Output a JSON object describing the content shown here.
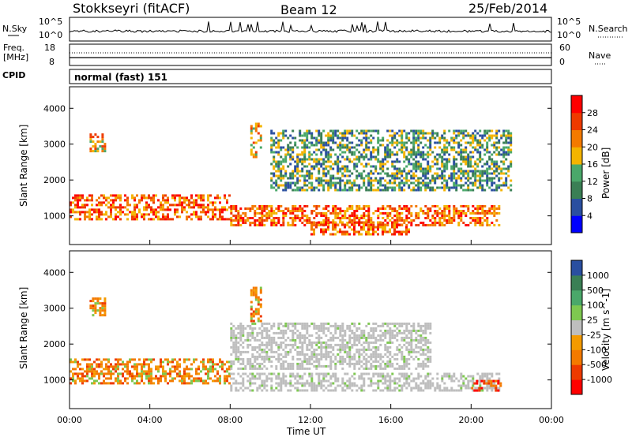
{
  "header": {
    "station": "Stokkseyri (fitACF)",
    "beam": "Beam 12",
    "date": "25/Feb/2014"
  },
  "noise_panel": {
    "left_label": "N.Sky",
    "right_label": "N.Search",
    "ticks_left": [
      "10^5",
      "10^0"
    ],
    "ticks_right": [
      "10^5",
      "10^0"
    ]
  },
  "freq_panel": {
    "left_label_line1": "Freq.",
    "left_label_line2": "[MHz]",
    "right_label": "Nave",
    "ticks_left": [
      "18",
      "8"
    ],
    "ticks_right": [
      "60",
      "0"
    ]
  },
  "cpid": {
    "label": "CPID",
    "value": "normal (fast) 151"
  },
  "chart_data": [
    {
      "type": "heatmap",
      "name": "power",
      "ylabel": "Slant Range [km]",
      "ylim": [
        200,
        4600
      ],
      "yticks": [
        "1000",
        "2000",
        "3000",
        "4000"
      ],
      "colorbar": {
        "label": "Power [dB]",
        "range": [
          0,
          32
        ],
        "ticks": [
          "4",
          "8",
          "12",
          "16",
          "20",
          "24",
          "28"
        ],
        "colors": [
          "#0000ff",
          "#2a4fa0",
          "#3a7f55",
          "#4aa86a",
          "#f4b400",
          "#f47a00",
          "#ee3a00",
          "#ff0000"
        ]
      },
      "regions": [
        {
          "t": [
            0,
            8.0
          ],
          "r": [
            850,
            1600
          ],
          "level": "high"
        },
        {
          "t": [
            8.0,
            21.5
          ],
          "r": [
            700,
            1300
          ],
          "level": "high"
        },
        {
          "t": [
            12.0,
            17.0
          ],
          "r": [
            450,
            850
          ],
          "level": "high"
        },
        {
          "t": [
            1.0,
            1.8
          ],
          "r": [
            2800,
            3300
          ],
          "level": "mid"
        },
        {
          "t": [
            9.0,
            9.6
          ],
          "r": [
            2600,
            3600
          ],
          "level": "mid"
        },
        {
          "t": [
            10.0,
            22.0
          ],
          "r": [
            1700,
            3400
          ],
          "level": "low"
        }
      ]
    },
    {
      "type": "heatmap",
      "name": "velocity",
      "xlabel": "Time UT",
      "ylabel": "Slant Range [km]",
      "ylim": [
        200,
        4600
      ],
      "yticks": [
        "1000",
        "2000",
        "3000",
        "4000"
      ],
      "xticks": [
        "00:00",
        "04:00",
        "08:00",
        "12:00",
        "16:00",
        "20:00",
        "00:00"
      ],
      "colorbar": {
        "label": "Velocity [m s^-1]",
        "ticks": [
          "1000",
          "500",
          "100",
          "25",
          "-25",
          "-100",
          "-500",
          "-1000"
        ],
        "colors": [
          "#2a4fa0",
          "#3a7f55",
          "#4aa86a",
          "#7ec850",
          "#bebebe",
          "#f49a00",
          "#f47a00",
          "#ee3a00",
          "#ff0000"
        ]
      },
      "regions": [
        {
          "t": [
            0,
            8.0
          ],
          "r": [
            850,
            1600
          ],
          "level": "negative"
        },
        {
          "t": [
            8.0,
            21.5
          ],
          "r": [
            700,
            1200
          ],
          "level": "ground"
        },
        {
          "t": [
            8.0,
            18.0
          ],
          "r": [
            1300,
            2600
          ],
          "level": "ground"
        },
        {
          "t": [
            20.0,
            21.5
          ],
          "r": [
            700,
            1000
          ],
          "level": "strong-negative"
        },
        {
          "t": [
            1.0,
            1.8
          ],
          "r": [
            2800,
            3300
          ],
          "level": "negative"
        },
        {
          "t": [
            9.0,
            9.6
          ],
          "r": [
            2600,
            3600
          ],
          "level": "negative"
        }
      ]
    }
  ]
}
